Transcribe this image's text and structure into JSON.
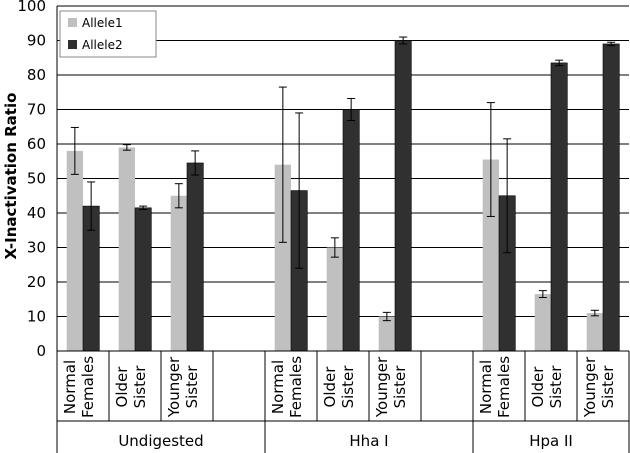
{
  "chart_data": {
    "type": "bar",
    "ylabel": "X-Inactivation Ratio",
    "ylim": [
      0,
      100
    ],
    "yticks": [
      0,
      10,
      20,
      30,
      40,
      50,
      60,
      70,
      80,
      90,
      100
    ],
    "grid": true,
    "legend_position": "top-left",
    "groups": [
      {
        "label": "Undigested",
        "categories": [
          "Normal Females",
          "Older Sister",
          "Younger Sister"
        ]
      },
      {
        "label": "Hha I",
        "categories": [
          "Normal Females",
          "Older Sister",
          "Younger Sister"
        ]
      },
      {
        "label": "Hpa II",
        "categories": [
          "Normal Females",
          "Older Sister",
          "Younger Sister"
        ]
      }
    ],
    "series": [
      {
        "name": "Allele1",
        "color": "#c0c0c0",
        "values": [
          58,
          59,
          45,
          54,
          30,
          10,
          55.5,
          16.5,
          11
        ],
        "errors": [
          6.8,
          0.8,
          3.5,
          22.5,
          2.8,
          1.2,
          16.5,
          1.0,
          0.8
        ]
      },
      {
        "name": "Allele2",
        "color": "#303030",
        "values": [
          42,
          41.5,
          54.5,
          46.5,
          70,
          90,
          45,
          83.5,
          89
        ],
        "errors": [
          7,
          0.5,
          3.5,
          22.5,
          3.2,
          1.0,
          16.5,
          0.8,
          0.5
        ]
      }
    ]
  }
}
